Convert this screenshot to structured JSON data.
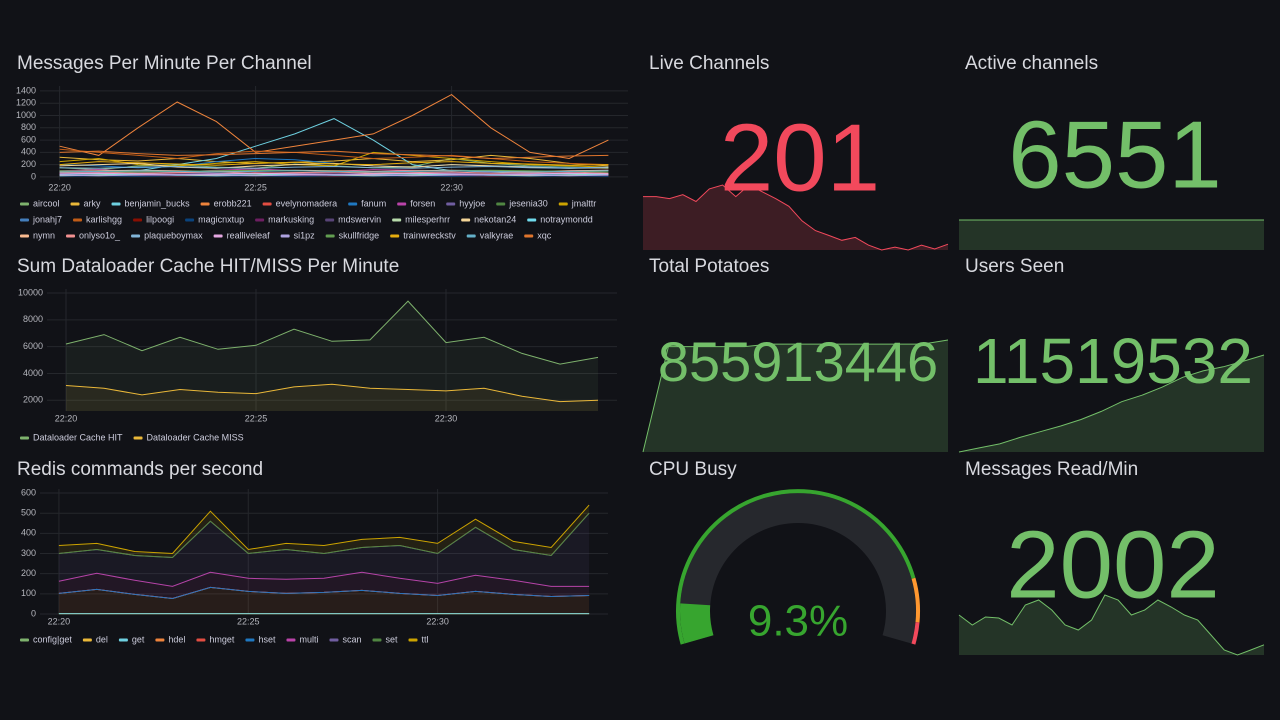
{
  "chart_data": [
    {
      "type": "line",
      "title": "Messages Per Minute Per Channel",
      "x": [
        "22:20",
        "22:21",
        "22:22",
        "22:23",
        "22:24",
        "22:25",
        "22:26",
        "22:27",
        "22:28",
        "22:29",
        "22:30",
        "22:31",
        "22:32",
        "22:33",
        "22:34"
      ],
      "xticks": [
        "22:20",
        "22:25",
        "22:30"
      ],
      "ylim": [
        -50,
        1480
      ],
      "yticks": [
        0,
        200,
        400,
        600,
        800,
        1000,
        1200,
        1400
      ],
      "grid": true,
      "series": [
        {
          "name": "aircool",
          "color": "#7EB26D",
          "values": [
            150,
            120,
            180,
            200,
            160,
            140,
            210,
            180,
            150,
            170,
            300,
            220,
            180,
            160,
            140
          ]
        },
        {
          "name": "arky",
          "color": "#EAB839",
          "values": [
            320,
            280,
            260,
            300,
            250,
            220,
            240,
            260,
            300,
            250,
            280,
            350,
            300,
            220,
            180
          ]
        },
        {
          "name": "benjamin_bucks",
          "color": "#6ED0E0",
          "values": [
            80,
            60,
            100,
            200,
            300,
            500,
            700,
            950,
            600,
            200,
            100,
            80,
            60,
            50,
            40
          ]
        },
        {
          "name": "erobb221",
          "color": "#EF843C",
          "values": [
            500,
            350,
            800,
            1220,
            900,
            400,
            500,
            600,
            700,
            1000,
            1340,
            800,
            400,
            300,
            600
          ]
        },
        {
          "name": "evelynomadera",
          "color": "#E24D42",
          "values": [
            50,
            40,
            60,
            50,
            40,
            70,
            60,
            50,
            80,
            60,
            50,
            40,
            60,
            50,
            40
          ]
        },
        {
          "name": "fanum",
          "color": "#1F78C1",
          "values": [
            200,
            180,
            150,
            170,
            250,
            300,
            280,
            220,
            180,
            160,
            200,
            180,
            170,
            150,
            160
          ]
        },
        {
          "name": "forsen",
          "color": "#BA43A9",
          "values": [
            100,
            120,
            90,
            80,
            110,
            130,
            100,
            90,
            120,
            110,
            100,
            90,
            80,
            100,
            110
          ]
        },
        {
          "name": "hyyjoe",
          "color": "#705DA0",
          "values": [
            60,
            70,
            50,
            80,
            60,
            50,
            70,
            60,
            50,
            40,
            60,
            70,
            50,
            60,
            50
          ]
        },
        {
          "name": "jesenia30",
          "color": "#508642",
          "values": [
            30,
            20,
            40,
            30,
            20,
            30,
            40,
            30,
            20,
            30,
            40,
            30,
            20,
            30,
            20
          ]
        },
        {
          "name": "jmalttr",
          "color": "#CCA300",
          "values": [
            250,
            300,
            200,
            180,
            220,
            250,
            200,
            180,
            400,
            350,
            300,
            250,
            200,
            180,
            160
          ]
        },
        {
          "name": "jonahj7",
          "color": "#447EBC",
          "values": [
            40,
            30,
            50,
            40,
            30,
            40,
            50,
            40,
            30,
            40,
            50,
            40,
            30,
            40,
            30
          ]
        },
        {
          "name": "karlishgg",
          "color": "#C15C17",
          "values": [
            450,
            400,
            350,
            300,
            380,
            420,
            400,
            350,
            300,
            320,
            350,
            300,
            250,
            220,
            200
          ]
        },
        {
          "name": "lilpoogi",
          "color": "#890F02",
          "values": [
            20,
            30,
            20,
            10,
            20,
            30,
            20,
            10,
            20,
            30,
            20,
            10,
            20,
            30,
            20
          ]
        },
        {
          "name": "magicnxtup",
          "color": "#0A437C",
          "values": [
            10,
            20,
            10,
            20,
            10,
            20,
            10,
            20,
            10,
            20,
            10,
            20,
            10,
            20,
            10
          ]
        },
        {
          "name": "markusking",
          "color": "#6D1F62",
          "values": [
            30,
            40,
            30,
            20,
            30,
            40,
            30,
            20,
            30,
            40,
            30,
            20,
            30,
            40,
            30
          ]
        },
        {
          "name": "mdswervin",
          "color": "#584477",
          "values": [
            60,
            50,
            70,
            60,
            50,
            60,
            70,
            60,
            50,
            60,
            70,
            60,
            50,
            60,
            50
          ]
        },
        {
          "name": "milesperhrr",
          "color": "#B7DBAB",
          "values": [
            20,
            30,
            40,
            30,
            20,
            30,
            40,
            30,
            20,
            30,
            40,
            30,
            20,
            30,
            40
          ]
        },
        {
          "name": "nekotan24",
          "color": "#F4D598",
          "values": [
            180,
            200,
            220,
            160,
            140,
            180,
            200,
            220,
            180,
            160,
            200,
            180,
            160,
            140,
            150
          ]
        },
        {
          "name": "notraymondd",
          "color": "#70DBED",
          "values": [
            40,
            50,
            40,
            30,
            40,
            50,
            40,
            30,
            40,
            50,
            40,
            30,
            40,
            50,
            40
          ]
        },
        {
          "name": "nymn",
          "color": "#F9BA8F",
          "values": [
            90,
            100,
            110,
            100,
            90,
            100,
            110,
            100,
            90,
            100,
            110,
            100,
            90,
            100,
            110
          ]
        },
        {
          "name": "onlyso1o_",
          "color": "#F29191",
          "values": [
            70,
            80,
            60,
            70,
            80,
            60,
            70,
            80,
            60,
            70,
            80,
            60,
            70,
            80,
            60
          ]
        },
        {
          "name": "plaqueboymax",
          "color": "#82B5D8",
          "values": [
            150,
            140,
            160,
            170,
            150,
            140,
            160,
            170,
            150,
            140,
            160,
            170,
            150,
            140,
            160
          ]
        },
        {
          "name": "realliveleaf",
          "color": "#E5A8E2",
          "values": [
            50,
            60,
            50,
            40,
            50,
            60,
            50,
            40,
            50,
            60,
            50,
            40,
            50,
            60,
            50
          ]
        },
        {
          "name": "si1pz",
          "color": "#AEA2E0",
          "values": [
            30,
            20,
            30,
            40,
            30,
            20,
            30,
            40,
            30,
            20,
            30,
            40,
            30,
            20,
            30
          ]
        },
        {
          "name": "skullfridge",
          "color": "#629E51",
          "values": [
            100,
            90,
            80,
            90,
            100,
            110,
            100,
            90,
            80,
            90,
            100,
            110,
            100,
            90,
            80
          ]
        },
        {
          "name": "trainwreckstv",
          "color": "#E5AC0E",
          "values": [
            200,
            250,
            230,
            210,
            190,
            220,
            240,
            210,
            200,
            230,
            250,
            220,
            210,
            190,
            200
          ]
        },
        {
          "name": "valkyrae",
          "color": "#64B0C8",
          "values": [
            80,
            90,
            100,
            90,
            80,
            90,
            100,
            90,
            80,
            90,
            100,
            90,
            80,
            90,
            100
          ]
        },
        {
          "name": "xqc",
          "color": "#E0752D",
          "values": [
            400,
            420,
            380,
            350,
            360,
            380,
            400,
            420,
            380,
            360,
            340,
            300,
            320,
            340,
            350
          ]
        }
      ]
    },
    {
      "type": "line",
      "title": "Sum Dataloader Cache HIT/MISS Per Minute",
      "x": [
        "22:20",
        "22:21",
        "22:22",
        "22:23",
        "22:24",
        "22:25",
        "22:26",
        "22:27",
        "22:28",
        "22:29",
        "22:30",
        "22:31",
        "22:32",
        "22:33",
        "22:34"
      ],
      "xticks": [
        "22:20",
        "22:25",
        "22:30"
      ],
      "ylim": [
        1200,
        10300
      ],
      "yticks": [
        2000,
        4000,
        6000,
        8000,
        10000
      ],
      "grid": true,
      "series": [
        {
          "name": "Dataloader Cache HIT",
          "color": "#7EB26D",
          "values": [
            6200,
            6900,
            5700,
            6700,
            5800,
            6100,
            7300,
            6400,
            6500,
            9400,
            6300,
            6700,
            5500,
            4700,
            5200
          ]
        },
        {
          "name": "Dataloader Cache MISS",
          "color": "#EAB839",
          "values": [
            3100,
            2900,
            2400,
            2800,
            2600,
            2500,
            3000,
            3200,
            2900,
            2800,
            2700,
            2900,
            2300,
            1900,
            2000
          ]
        }
      ]
    },
    {
      "type": "area",
      "stacked": true,
      "title": "Redis commands per second",
      "x": [
        "22:20",
        "22:21",
        "22:22",
        "22:23",
        "22:24",
        "22:25",
        "22:26",
        "22:27",
        "22:28",
        "22:29",
        "22:30",
        "22:31",
        "22:32",
        "22:33",
        "22:34"
      ],
      "xticks": [
        "22:20",
        "22:25",
        "22:30"
      ],
      "ylim": [
        0,
        620
      ],
      "yticks": [
        0,
        100,
        200,
        300,
        400,
        500,
        600
      ],
      "grid": true,
      "series": [
        {
          "name": "config|get",
          "color": "#7EB26D",
          "values": [
            2,
            2,
            2,
            2,
            2,
            2,
            2,
            2,
            2,
            2,
            2,
            2,
            2,
            2,
            2
          ]
        },
        {
          "name": "del",
          "color": "#EAB839",
          "values": [
            0,
            0,
            0,
            0,
            0,
            0,
            0,
            0,
            0,
            0,
            0,
            0,
            0,
            0,
            0
          ]
        },
        {
          "name": "get",
          "color": "#6ED0E0",
          "values": [
            0,
            0,
            0,
            0,
            0,
            0,
            0,
            0,
            0,
            0,
            0,
            0,
            0,
            0,
            0
          ]
        },
        {
          "name": "hdel",
          "color": "#EF843C",
          "values": [
            100,
            120,
            95,
            75,
            130,
            110,
            100,
            105,
            115,
            100,
            90,
            110,
            95,
            85,
            90
          ]
        },
        {
          "name": "hmget",
          "color": "#E24D42",
          "values": [
            0,
            0,
            0,
            0,
            0,
            0,
            0,
            0,
            0,
            0,
            0,
            0,
            0,
            0,
            0
          ]
        },
        {
          "name": "hset",
          "color": "#1F78C1",
          "values": [
            0,
            0,
            0,
            0,
            0,
            0,
            0,
            0,
            0,
            0,
            0,
            0,
            0,
            0,
            0
          ]
        },
        {
          "name": "multi",
          "color": "#BA43A9",
          "values": [
            60,
            80,
            70,
            60,
            75,
            65,
            70,
            70,
            90,
            75,
            60,
            80,
            70,
            50,
            45
          ]
        },
        {
          "name": "scan",
          "color": "#705DA0",
          "values": [
            138,
            118,
            123,
            143,
            253,
            123,
            148,
            123,
            123,
            163,
            148,
            238,
            153,
            153,
            363
          ]
        },
        {
          "name": "set",
          "color": "#508642",
          "values": [
            0,
            0,
            0,
            0,
            0,
            0,
            0,
            0,
            0,
            0,
            0,
            0,
            0,
            0,
            0
          ]
        },
        {
          "name": "ttl",
          "color": "#CCA300",
          "values": [
            40,
            30,
            20,
            20,
            50,
            20,
            30,
            40,
            40,
            40,
            50,
            40,
            40,
            40,
            40
          ]
        }
      ]
    },
    {
      "type": "stat",
      "title": "Live Channels",
      "value": 201,
      "color": "#f2495c",
      "values": [
        250,
        250,
        248,
        252,
        245,
        258,
        262,
        250,
        262,
        255,
        248,
        240,
        225,
        215,
        210,
        205,
        208,
        200,
        195,
        198,
        195,
        200,
        196,
        201
      ]
    },
    {
      "type": "stat",
      "title": "Active channels",
      "value": 6551,
      "color": "#73bf69",
      "values": [
        6551,
        6551,
        6551,
        6551,
        6551,
        6551,
        6551,
        6551,
        6551,
        6551
      ]
    },
    {
      "type": "stat",
      "title": "Total Potatoes",
      "value": 855913446,
      "color": "#73bf69",
      "values": [
        855000000,
        855860000,
        855860000,
        855860000,
        855860000,
        855880000,
        855880000,
        855880000,
        855880000,
        855880000,
        855880000,
        855880000,
        855913446
      ]
    },
    {
      "type": "stat",
      "title": "Users Seen",
      "value": 11519532,
      "color": "#73bf69",
      "values": [
        11400000,
        11405000,
        11410000,
        11418000,
        11425000,
        11432000,
        11440000,
        11450000,
        11462000,
        11470000,
        11480000,
        11492000,
        11500000,
        11505000,
        11512000,
        11519532
      ]
    },
    {
      "type": "gauge",
      "title": "CPU Busy",
      "value": 9.3,
      "value_label": "9.3%",
      "ylim": [
        0,
        100
      ],
      "color": "#37a52f",
      "thresholds": [
        {
          "value": 85,
          "color": "#ff9830"
        },
        {
          "value": 95,
          "color": "#f2495c"
        }
      ]
    },
    {
      "type": "stat",
      "title": "Messages Read/Min",
      "value": 2002,
      "color": "#73bf69",
      "values": [
        2300,
        2200,
        2280,
        2270,
        2200,
        2400,
        2450,
        2350,
        2200,
        2150,
        2250,
        2500,
        2450,
        2300,
        2350,
        2450,
        2380,
        2300,
        2250,
        2100,
        1950,
        1900,
        1950,
        2002
      ]
    }
  ]
}
